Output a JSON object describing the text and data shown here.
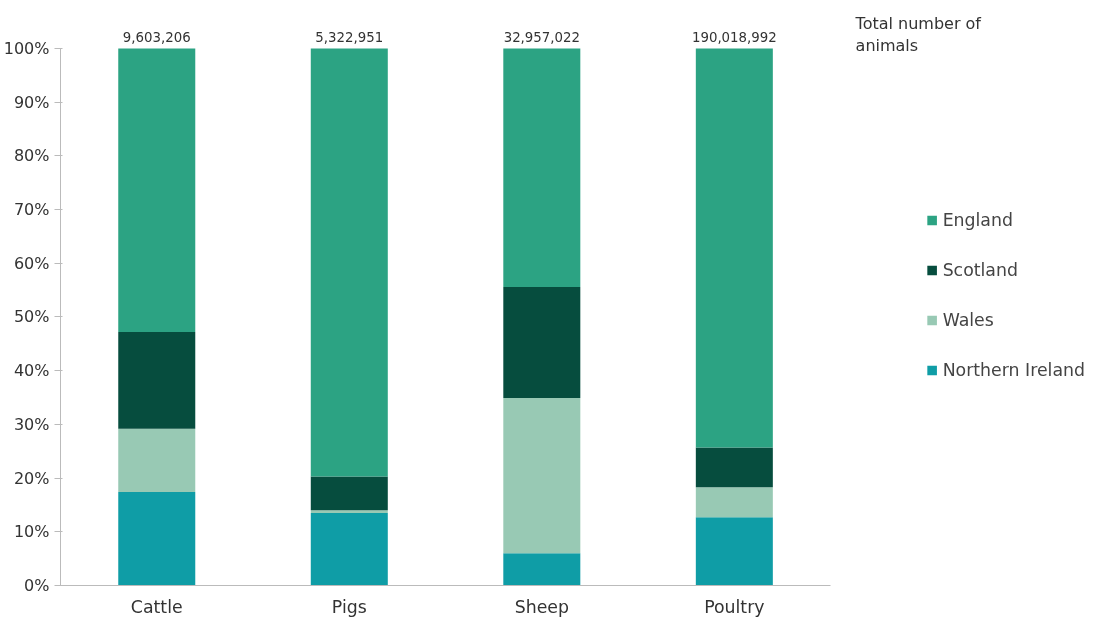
{
  "chart_data": {
    "type": "bar",
    "stacked": true,
    "categories": [
      "Cattle",
      "Pigs",
      "Sheep",
      "Poultry"
    ],
    "series": [
      {
        "name": "Northern Ireland",
        "color": "#0f9da6",
        "values": [
          17.4,
          13.5,
          6.0,
          12.7
        ]
      },
      {
        "name": "Wales",
        "color": "#98c9b4",
        "values": [
          11.8,
          0.5,
          28.9,
          5.6
        ]
      },
      {
        "name": "Scotland",
        "color": "#064d3e",
        "values": [
          18.0,
          6.3,
          20.7,
          7.4
        ]
      },
      {
        "name": "England",
        "color": "#2ca383",
        "values": [
          52.8,
          79.7,
          44.4,
          74.3
        ]
      }
    ],
    "ylim": [
      0,
      100
    ],
    "yticks": [
      {
        "value": 0,
        "label": "0%"
      },
      {
        "value": 10,
        "label": "10%"
      },
      {
        "value": 20,
        "label": "20%"
      },
      {
        "value": 30,
        "label": "30%"
      },
      {
        "value": 40,
        "label": "40%"
      },
      {
        "value": 50,
        "label": "50%"
      },
      {
        "value": 60,
        "label": "60%"
      },
      {
        "value": 70,
        "label": "70%"
      },
      {
        "value": 80,
        "label": "80%"
      },
      {
        "value": 90,
        "label": "90%"
      },
      {
        "value": 100,
        "label": "100%"
      }
    ],
    "annotations": [
      {
        "text": "9,603,206",
        "x": "Cattle",
        "y": 100
      },
      {
        "text": "5,322,951",
        "x": "Pigs",
        "y": 100
      },
      {
        "text": "32,957,022",
        "x": "Sheep",
        "y": 100
      },
      {
        "text": "190,018,992",
        "x": "Poultry",
        "y": 100
      },
      "Total number of animals"
    ],
    "legend": "right",
    "grid": false
  }
}
